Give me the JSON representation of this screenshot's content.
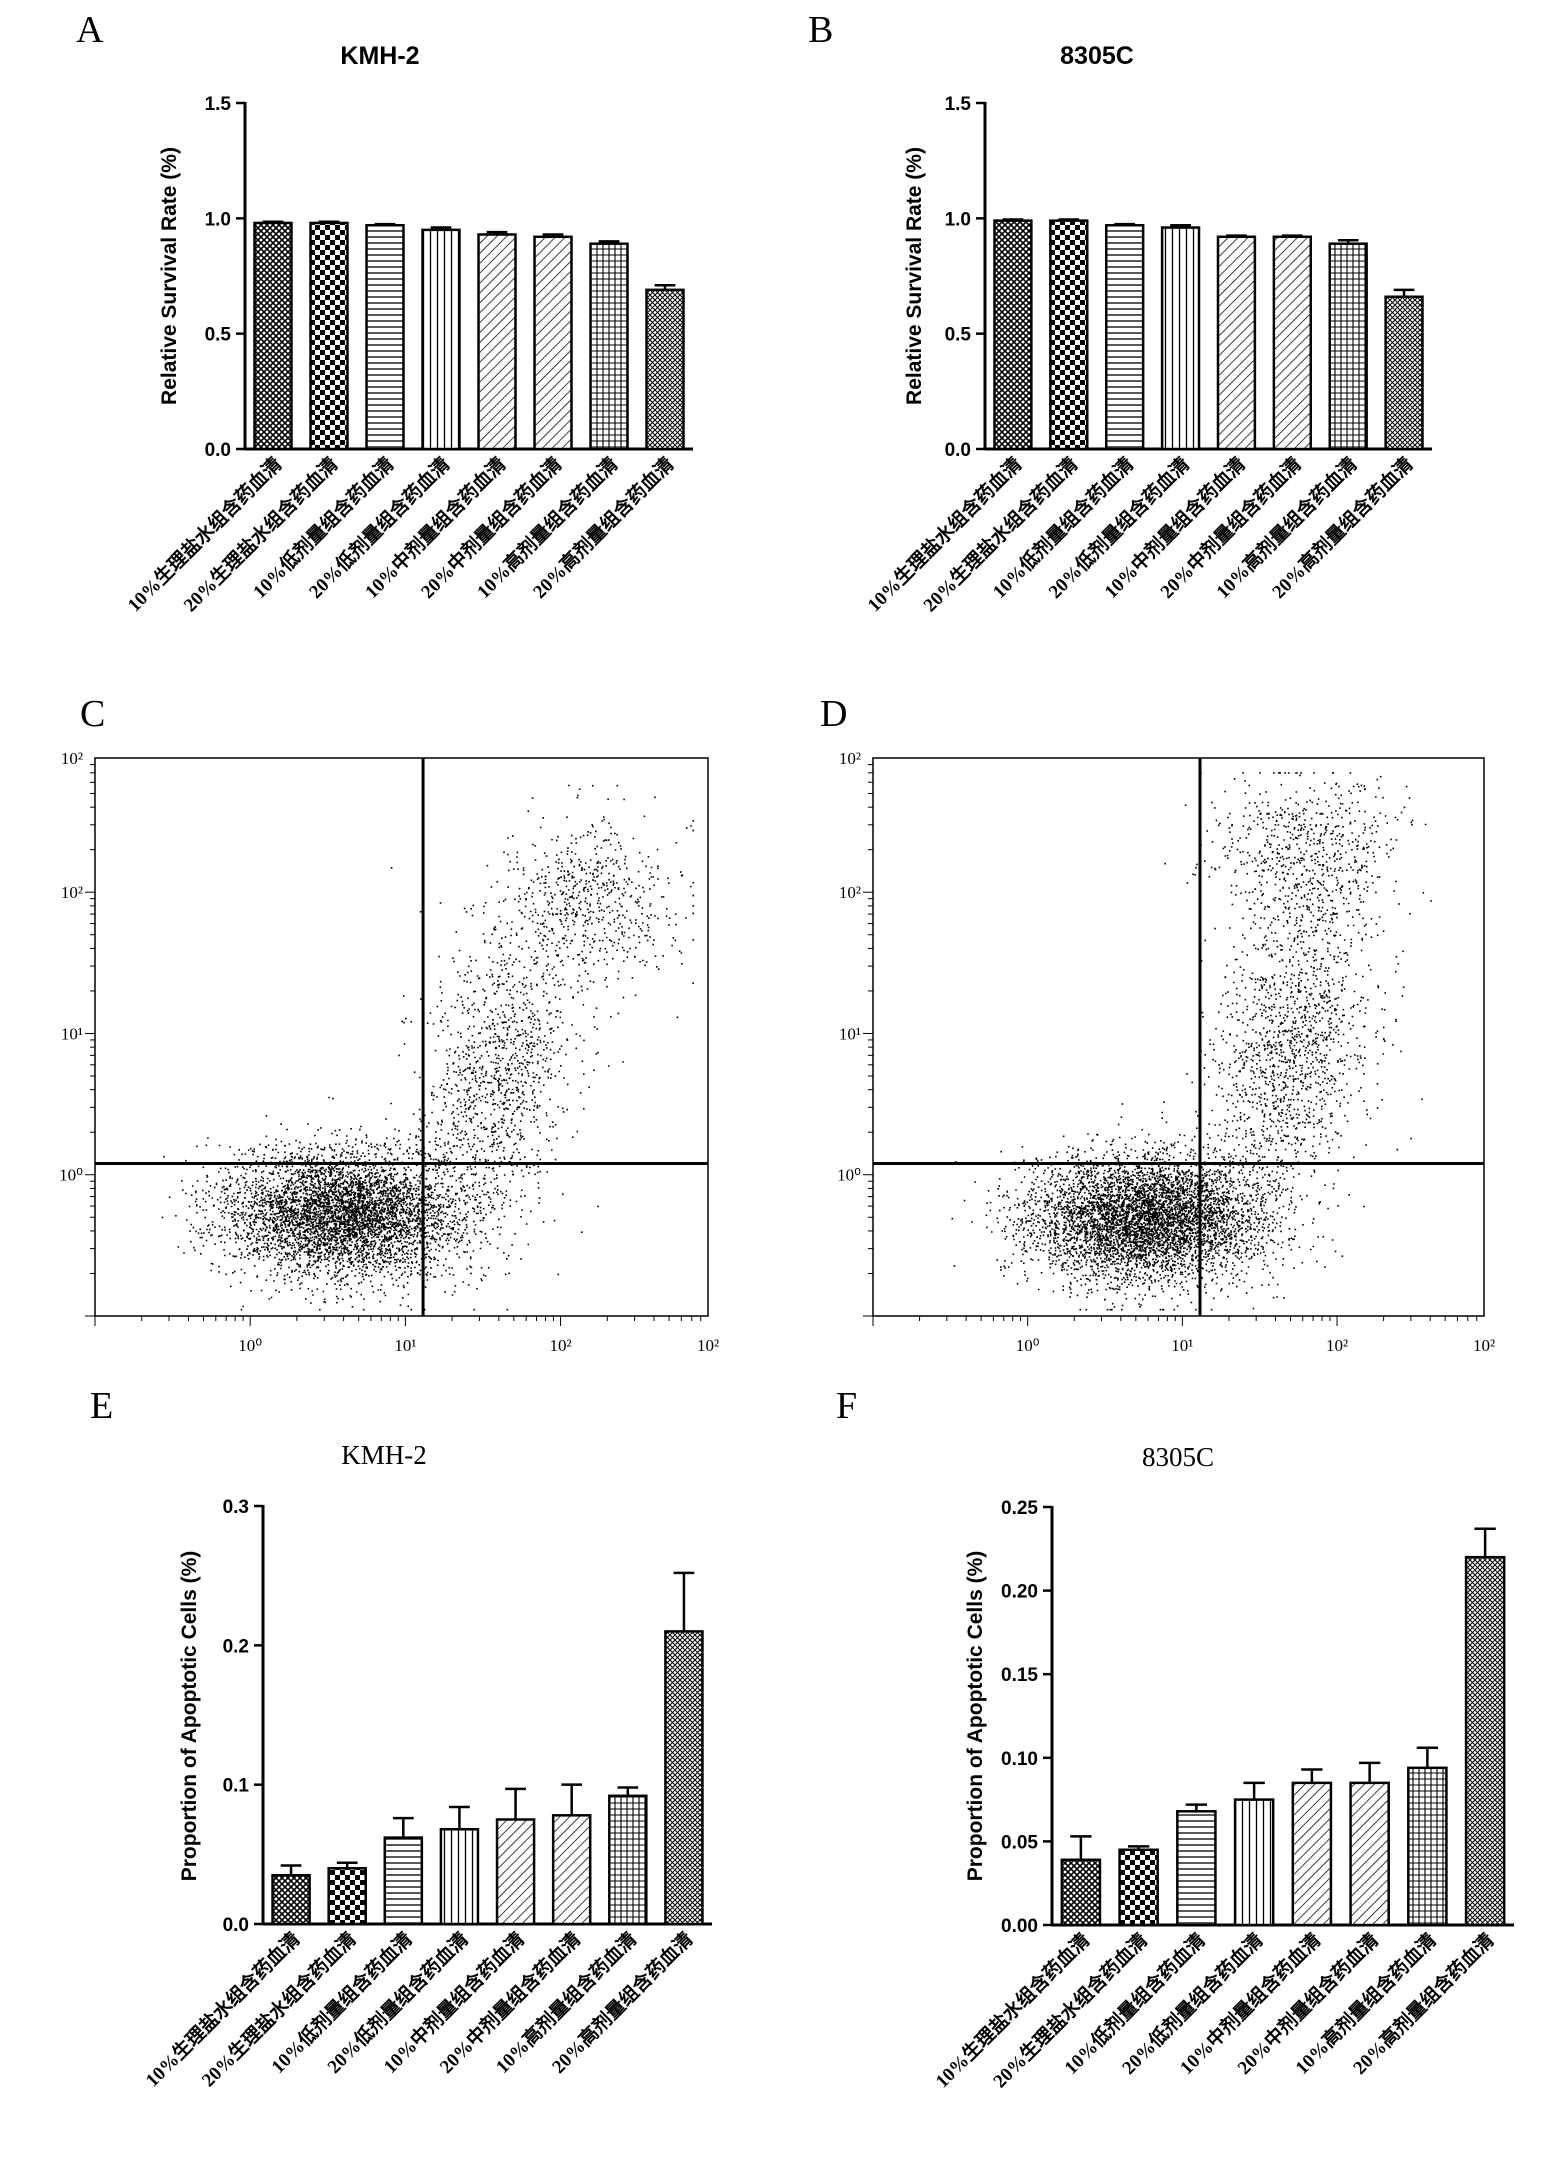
{
  "panel_letters": {
    "a": "A",
    "b": "B",
    "c": "C",
    "d": "D",
    "e": "E",
    "f": "F"
  },
  "patterns": [
    "crosshatch",
    "checker",
    "hlines",
    "vlines",
    "diag",
    "diag",
    "grid",
    "dense-hatch"
  ],
  "chart_data": [
    {
      "panel": "A",
      "type": "bar",
      "title": "KMH-2",
      "ylabel": "Relative Survival Rate (%)",
      "ylim": [
        0,
        1.5
      ],
      "yticks": [
        "0.0",
        "0.5",
        "1.0",
        "1.5"
      ],
      "categories": [
        "10%生理盐水组含药血清",
        "20%生理盐水组含药血清",
        "10%低剂量组含药血清",
        "20%低剂量组含药血清",
        "10%中剂量组含药血清",
        "20%中剂量组含药血清",
        "10%高剂量组含药血清",
        "20%高剂量组含药血清"
      ],
      "values": [
        0.98,
        0.98,
        0.97,
        0.95,
        0.93,
        0.92,
        0.89,
        0.69
      ],
      "errors": [
        0.005,
        0.005,
        0.005,
        0.01,
        0.01,
        0.01,
        0.01,
        0.02
      ]
    },
    {
      "panel": "B",
      "type": "bar",
      "title": "8305C",
      "ylabel": "Relative Survival Rate (%)",
      "ylim": [
        0,
        1.5
      ],
      "yticks": [
        "0.0",
        "0.5",
        "1.0",
        "1.5"
      ],
      "categories": [
        "10%生理盐水组含药血清",
        "20%生理盐水组含药血清",
        "10%低剂量组含药血清",
        "20%低剂量组含药血清",
        "10%中剂量组含药血清",
        "20%中剂量组含药血清",
        "10%高剂量组含药血清",
        "20%高剂量组含药血清"
      ],
      "values": [
        0.99,
        0.99,
        0.97,
        0.96,
        0.92,
        0.92,
        0.89,
        0.66
      ],
      "errors": [
        0.005,
        0.005,
        0.005,
        0.01,
        0.005,
        0.005,
        0.015,
        0.03
      ]
    },
    {
      "panel": "C",
      "type": "scatter",
      "x_scale": "log",
      "y_scale": "log",
      "xticks": [
        "10⁰",
        "10¹",
        "10²",
        "10²"
      ],
      "yticks": [
        "10²",
        "10²",
        "10¹",
        "10⁰"
      ],
      "quadrant_gate": {
        "x": 13,
        "y": 1.2
      },
      "clusters": [
        {
          "x_center": 4.0,
          "y_center": 0.55,
          "count": 9000
        },
        {
          "x_center": 40,
          "y_center": 5,
          "count": 2200
        },
        {
          "x_center": 150,
          "y_center": 90,
          "count": 1100
        }
      ]
    },
    {
      "panel": "D",
      "type": "scatter",
      "x_scale": "log",
      "y_scale": "log",
      "xticks": [
        "10⁰",
        "10¹",
        "10²",
        "10²"
      ],
      "yticks": [
        "10²",
        "10²",
        "10¹",
        "10⁰"
      ],
      "quadrant_gate": {
        "x": 13,
        "y": 1.2
      },
      "clusters": [
        {
          "x_center": 6.0,
          "y_center": 0.5,
          "count": 9500
        },
        {
          "x_center": 50,
          "y_center": 8,
          "count": 2600
        },
        {
          "x_center": 60,
          "y_center": 200,
          "count": 1200
        }
      ]
    },
    {
      "panel": "E",
      "type": "bar",
      "title": "KMH-2",
      "ylabel": "Proportion of Apoptotic Cells (%)",
      "ylim": [
        0,
        0.3
      ],
      "yticks": [
        "0.0",
        "0.1",
        "0.2",
        "0.3"
      ],
      "categories": [
        "10%生理盐水组含药血清",
        "20%生理盐水组含药血清",
        "10%低剂量组含药血清",
        "20%低剂量组含药血清",
        "10%中剂量组含药血清",
        "20%中剂量组含药血清",
        "10%高剂量组含药血清",
        "20%高剂量组含药血清"
      ],
      "values": [
        0.035,
        0.04,
        0.062,
        0.068,
        0.075,
        0.078,
        0.092,
        0.21
      ],
      "errors": [
        0.007,
        0.004,
        0.014,
        0.016,
        0.022,
        0.022,
        0.006,
        0.042
      ]
    },
    {
      "panel": "F",
      "type": "bar",
      "title": "8305C",
      "ylabel": "Proportion of Apoptotic Cells (%)",
      "ylim": [
        0,
        0.25
      ],
      "yticks": [
        "0.00",
        "0.05",
        "0.10",
        "0.15",
        "0.20",
        "0.25"
      ],
      "categories": [
        "10%生理盐水组含药血清",
        "20%生理盐水组含药血清",
        "10%低剂量组含药血清",
        "20%低剂量组含药血清",
        "10%中剂量组含药血清",
        "20%中剂量组含药血清",
        "10%高剂量组含药血清",
        "20%高剂量组含药血清"
      ],
      "values": [
        0.039,
        0.045,
        0.068,
        0.075,
        0.085,
        0.085,
        0.094,
        0.22
      ],
      "errors": [
        0.014,
        0.002,
        0.004,
        0.01,
        0.008,
        0.012,
        0.012,
        0.017
      ]
    }
  ]
}
